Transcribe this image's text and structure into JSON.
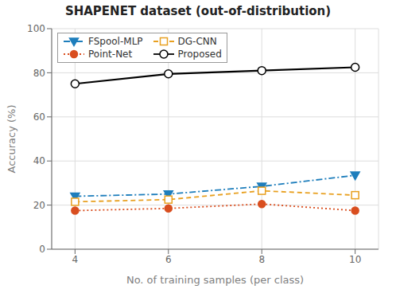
{
  "chart_data": {
    "type": "line",
    "title": "SHAPENET dataset (out-of-distribution)",
    "xlabel": "No. of training samples (per class)",
    "ylabel": "Accuracy (%)",
    "x": [
      4,
      6,
      8,
      10
    ],
    "series": [
      {
        "name": "FSpool-MLP",
        "color": "#1e7ebc",
        "values": [
          24.0,
          25.0,
          28.5,
          33.5
        ],
        "marker": "triangle-down",
        "line_style": "dashdot"
      },
      {
        "name": "DG-CNN",
        "color": "#e8a020",
        "values": [
          21.5,
          22.5,
          26.5,
          24.5
        ],
        "marker": "square-open",
        "line_style": "dashed"
      },
      {
        "name": "Point-Net",
        "color": "#d94e1f",
        "values": [
          17.5,
          18.5,
          20.5,
          17.5
        ],
        "marker": "circle",
        "line_style": "dotted"
      },
      {
        "name": "Proposed",
        "color": "#000000",
        "values": [
          75.0,
          79.5,
          81.0,
          82.5
        ],
        "marker": "circle-open",
        "line_style": "solid"
      }
    ],
    "xlim": [
      3.5,
      10.5
    ],
    "xticks": [
      4,
      6,
      8,
      10
    ],
    "ylim": [
      0,
      100
    ],
    "yticks": [
      0,
      20,
      40,
      60,
      80,
      100
    ],
    "grid": true,
    "legend": "upper left"
  }
}
